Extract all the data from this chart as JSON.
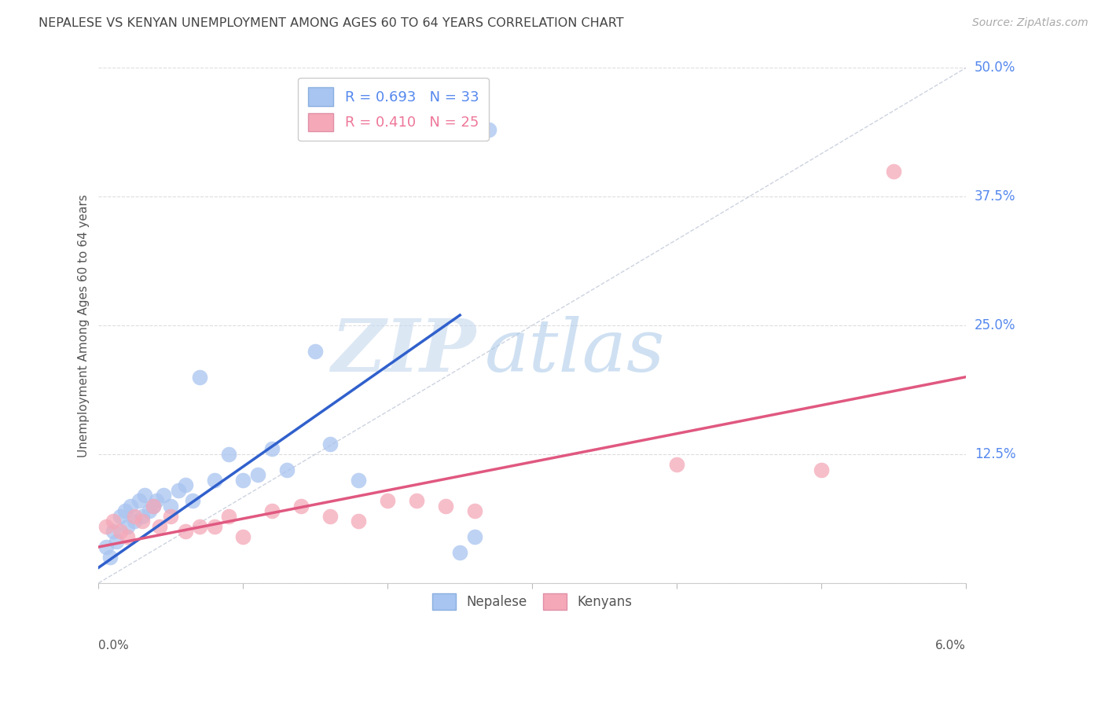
{
  "title": "NEPALESE VS KENYAN UNEMPLOYMENT AMONG AGES 60 TO 64 YEARS CORRELATION CHART",
  "source": "Source: ZipAtlas.com",
  "ylabel": "Unemployment Among Ages 60 to 64 years",
  "xlim": [
    0.0,
    6.0
  ],
  "ylim": [
    0.0,
    50.0
  ],
  "yticks": [
    0.0,
    12.5,
    25.0,
    37.5,
    50.0
  ],
  "nepalese_dot_color": "#a8c4f0",
  "kenyan_dot_color": "#f4a8b8",
  "nepalese_line_color": "#3060cc",
  "kenyan_line_color": "#e05880",
  "nepalese_text_color": "#5588ee",
  "kenyan_text_color": "#ee7799",
  "diagonal_color": "#c0c8d8",
  "R_nepalese": 0.693,
  "N_nepalese": 33,
  "R_kenyan": 0.41,
  "N_kenyan": 25,
  "nepalese_x": [
    0.05,
    0.08,
    0.1,
    0.12,
    0.15,
    0.18,
    0.2,
    0.22,
    0.25,
    0.28,
    0.3,
    0.32,
    0.35,
    0.38,
    0.4,
    0.45,
    0.5,
    0.55,
    0.6,
    0.65,
    0.7,
    0.8,
    0.9,
    1.0,
    1.1,
    1.2,
    1.3,
    1.5,
    1.6,
    2.5,
    2.6,
    2.7,
    1.8
  ],
  "nepalese_y": [
    3.5,
    2.5,
    5.0,
    4.0,
    6.5,
    7.0,
    5.5,
    7.5,
    6.0,
    8.0,
    6.5,
    8.5,
    7.0,
    7.5,
    8.0,
    8.5,
    7.5,
    9.0,
    9.5,
    8.0,
    20.0,
    10.0,
    12.5,
    10.0,
    10.5,
    13.0,
    11.0,
    22.5,
    13.5,
    3.0,
    4.5,
    44.0,
    10.0
  ],
  "kenyan_x": [
    0.05,
    0.1,
    0.15,
    0.2,
    0.25,
    0.3,
    0.38,
    0.42,
    0.5,
    0.6,
    0.7,
    0.8,
    0.9,
    1.0,
    1.2,
    1.4,
    1.6,
    1.8,
    2.0,
    2.2,
    2.4,
    2.6,
    4.0,
    5.0,
    5.5
  ],
  "kenyan_y": [
    5.5,
    6.0,
    5.0,
    4.5,
    6.5,
    6.0,
    7.5,
    5.5,
    6.5,
    5.0,
    5.5,
    5.5,
    6.5,
    4.5,
    7.0,
    7.5,
    6.5,
    6.0,
    8.0,
    8.0,
    7.5,
    7.0,
    11.5,
    11.0,
    40.0
  ],
  "watermark_zip": "ZIP",
  "watermark_atlas": "atlas",
  "background_color": "#ffffff",
  "grid_color": "#dddddd",
  "nepalese_line_x": [
    0.0,
    2.5
  ],
  "nepalese_line_y": [
    1.5,
    26.0
  ],
  "kenyan_line_x": [
    0.0,
    6.0
  ],
  "kenyan_line_y": [
    3.5,
    20.0
  ]
}
